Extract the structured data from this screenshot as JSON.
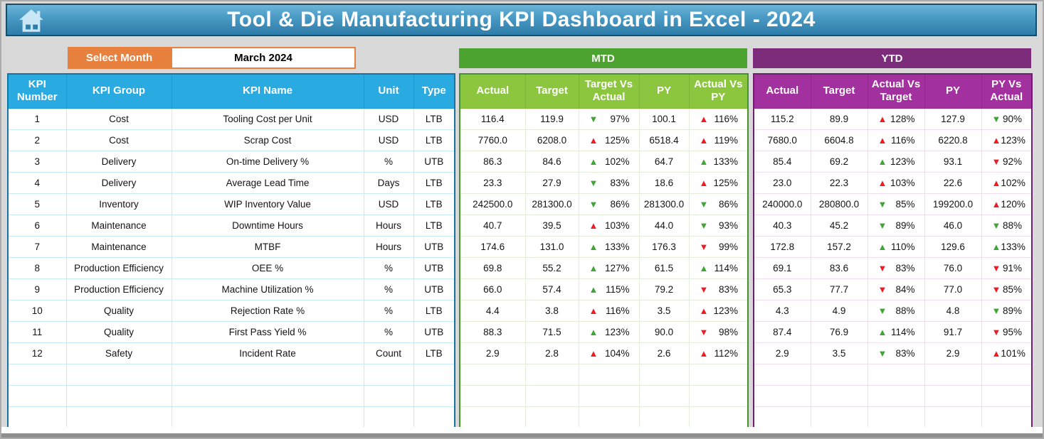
{
  "header": {
    "title": "Tool & Die Manufacturing KPI Dashboard in Excel - 2024"
  },
  "month_selector": {
    "button_label": "Select Month",
    "selected_value": "March 2024",
    "accent_color": "#E8813E"
  },
  "colors": {
    "kpi_header_blue": "#29ABE2",
    "mtd_band_green": "#4DA32F",
    "mtd_header_green": "#8CC63E",
    "ytd_band_purple": "#7D2B7B",
    "ytd_header_purple": "#A3309F",
    "trend_good_green": "#3FA535",
    "trend_bad_red": "#EC1C24",
    "title_bar_blue_top": "#6CB5D9",
    "title_bar_blue_bottom": "#2E7CA9"
  },
  "icons": {
    "up": "▲",
    "down": "▼"
  },
  "kpi_table": {
    "columns": [
      "KPI Number",
      "KPI Group",
      "KPI Name",
      "Unit",
      "Type"
    ],
    "empty_rows": 3,
    "rows": [
      {
        "number": "1",
        "group": "Cost",
        "name": "Tooling Cost per Unit",
        "unit": "USD",
        "type": "LTB"
      },
      {
        "number": "2",
        "group": "Cost",
        "name": "Scrap Cost",
        "unit": "USD",
        "type": "LTB"
      },
      {
        "number": "3",
        "group": "Delivery",
        "name": "On-time Delivery %",
        "unit": "%",
        "type": "UTB"
      },
      {
        "number": "4",
        "group": "Delivery",
        "name": "Average Lead Time",
        "unit": "Days",
        "type": "LTB"
      },
      {
        "number": "5",
        "group": "Inventory",
        "name": "WIP Inventory Value",
        "unit": "USD",
        "type": "LTB"
      },
      {
        "number": "6",
        "group": "Maintenance",
        "name": "Downtime Hours",
        "unit": "Hours",
        "type": "LTB"
      },
      {
        "number": "7",
        "group": "Maintenance",
        "name": "MTBF",
        "unit": "Hours",
        "type": "UTB"
      },
      {
        "number": "8",
        "group": "Production Efficiency",
        "name": "OEE %",
        "unit": "%",
        "type": "UTB"
      },
      {
        "number": "9",
        "group": "Production Efficiency",
        "name": "Machine Utilization %",
        "unit": "%",
        "type": "UTB"
      },
      {
        "number": "10",
        "group": "Quality",
        "name": "Rejection Rate %",
        "unit": "%",
        "type": "LTB"
      },
      {
        "number": "11",
        "group": "Quality",
        "name": "First Pass Yield %",
        "unit": "%",
        "type": "UTB"
      },
      {
        "number": "12",
        "group": "Safety",
        "name": "Incident Rate",
        "unit": "Count",
        "type": "LTB"
      }
    ]
  },
  "mtd": {
    "band_label": "MTD",
    "columns": [
      "Actual",
      "Target",
      "Target Vs Actual",
      "PY",
      "Actual Vs PY"
    ],
    "empty_rows": 3,
    "rows": [
      {
        "actual": "116.4",
        "target": "119.9",
        "cmp1": {
          "dir": "down",
          "color": "green",
          "value": "97%"
        },
        "py": "100.1",
        "cmp2": {
          "dir": "up",
          "color": "red",
          "value": "116%"
        }
      },
      {
        "actual": "7760.0",
        "target": "6208.0",
        "cmp1": {
          "dir": "up",
          "color": "red",
          "value": "125%"
        },
        "py": "6518.4",
        "cmp2": {
          "dir": "up",
          "color": "red",
          "value": "119%"
        }
      },
      {
        "actual": "86.3",
        "target": "84.6",
        "cmp1": {
          "dir": "up",
          "color": "green",
          "value": "102%"
        },
        "py": "64.7",
        "cmp2": {
          "dir": "up",
          "color": "green",
          "value": "133%"
        }
      },
      {
        "actual": "23.3",
        "target": "27.9",
        "cmp1": {
          "dir": "down",
          "color": "green",
          "value": "83%"
        },
        "py": "18.6",
        "cmp2": {
          "dir": "up",
          "color": "red",
          "value": "125%"
        }
      },
      {
        "actual": "242500.0",
        "target": "281300.0",
        "cmp1": {
          "dir": "down",
          "color": "green",
          "value": "86%"
        },
        "py": "281300.0",
        "cmp2": {
          "dir": "down",
          "color": "green",
          "value": "86%"
        }
      },
      {
        "actual": "40.7",
        "target": "39.5",
        "cmp1": {
          "dir": "up",
          "color": "red",
          "value": "103%"
        },
        "py": "44.0",
        "cmp2": {
          "dir": "down",
          "color": "green",
          "value": "93%"
        }
      },
      {
        "actual": "174.6",
        "target": "131.0",
        "cmp1": {
          "dir": "up",
          "color": "green",
          "value": "133%"
        },
        "py": "176.3",
        "cmp2": {
          "dir": "down",
          "color": "red",
          "value": "99%"
        }
      },
      {
        "actual": "69.8",
        "target": "55.2",
        "cmp1": {
          "dir": "up",
          "color": "green",
          "value": "127%"
        },
        "py": "61.5",
        "cmp2": {
          "dir": "up",
          "color": "green",
          "value": "114%"
        }
      },
      {
        "actual": "66.0",
        "target": "57.4",
        "cmp1": {
          "dir": "up",
          "color": "green",
          "value": "115%"
        },
        "py": "79.2",
        "cmp2": {
          "dir": "down",
          "color": "red",
          "value": "83%"
        }
      },
      {
        "actual": "4.4",
        "target": "3.8",
        "cmp1": {
          "dir": "up",
          "color": "red",
          "value": "116%"
        },
        "py": "3.5",
        "cmp2": {
          "dir": "up",
          "color": "red",
          "value": "123%"
        }
      },
      {
        "actual": "88.3",
        "target": "71.5",
        "cmp1": {
          "dir": "up",
          "color": "green",
          "value": "123%"
        },
        "py": "90.0",
        "cmp2": {
          "dir": "down",
          "color": "red",
          "value": "98%"
        }
      },
      {
        "actual": "2.9",
        "target": "2.8",
        "cmp1": {
          "dir": "up",
          "color": "red",
          "value": "104%"
        },
        "py": "2.6",
        "cmp2": {
          "dir": "up",
          "color": "red",
          "value": "112%"
        }
      }
    ]
  },
  "ytd": {
    "band_label": "YTD",
    "columns": [
      "Actual",
      "Target",
      "Actual Vs Target",
      "PY",
      "PY Vs Actual"
    ],
    "empty_rows": 3,
    "rows": [
      {
        "actual": "115.2",
        "target": "89.9",
        "cmp1": {
          "dir": "up",
          "color": "red",
          "value": "128%"
        },
        "py": "127.9",
        "cmp2": {
          "dir": "down",
          "color": "green",
          "value": "90%"
        }
      },
      {
        "actual": "7680.0",
        "target": "6604.8",
        "cmp1": {
          "dir": "up",
          "color": "red",
          "value": "116%"
        },
        "py": "6220.8",
        "cmp2": {
          "dir": "up",
          "color": "red",
          "value": "123%"
        }
      },
      {
        "actual": "85.4",
        "target": "69.2",
        "cmp1": {
          "dir": "up",
          "color": "green",
          "value": "123%"
        },
        "py": "93.1",
        "cmp2": {
          "dir": "down",
          "color": "red",
          "value": "92%"
        }
      },
      {
        "actual": "23.0",
        "target": "22.3",
        "cmp1": {
          "dir": "up",
          "color": "red",
          "value": "103%"
        },
        "py": "22.6",
        "cmp2": {
          "dir": "up",
          "color": "red",
          "value": "102%"
        }
      },
      {
        "actual": "240000.0",
        "target": "280800.0",
        "cmp1": {
          "dir": "down",
          "color": "green",
          "value": "85%"
        },
        "py": "199200.0",
        "cmp2": {
          "dir": "up",
          "color": "red",
          "value": "120%"
        }
      },
      {
        "actual": "40.3",
        "target": "45.2",
        "cmp1": {
          "dir": "down",
          "color": "green",
          "value": "89%"
        },
        "py": "46.0",
        "cmp2": {
          "dir": "down",
          "color": "green",
          "value": "88%"
        }
      },
      {
        "actual": "172.8",
        "target": "157.2",
        "cmp1": {
          "dir": "up",
          "color": "green",
          "value": "110%"
        },
        "py": "129.6",
        "cmp2": {
          "dir": "up",
          "color": "green",
          "value": "133%"
        }
      },
      {
        "actual": "69.1",
        "target": "83.6",
        "cmp1": {
          "dir": "down",
          "color": "red",
          "value": "83%"
        },
        "py": "76.0",
        "cmp2": {
          "dir": "down",
          "color": "red",
          "value": "91%"
        }
      },
      {
        "actual": "65.3",
        "target": "77.7",
        "cmp1": {
          "dir": "down",
          "color": "red",
          "value": "84%"
        },
        "py": "77.0",
        "cmp2": {
          "dir": "down",
          "color": "red",
          "value": "85%"
        }
      },
      {
        "actual": "4.3",
        "target": "4.9",
        "cmp1": {
          "dir": "down",
          "color": "green",
          "value": "88%"
        },
        "py": "4.8",
        "cmp2": {
          "dir": "down",
          "color": "green",
          "value": "89%"
        }
      },
      {
        "actual": "87.4",
        "target": "76.9",
        "cmp1": {
          "dir": "up",
          "color": "green",
          "value": "114%"
        },
        "py": "91.7",
        "cmp2": {
          "dir": "down",
          "color": "red",
          "value": "95%"
        }
      },
      {
        "actual": "2.9",
        "target": "3.5",
        "cmp1": {
          "dir": "down",
          "color": "green",
          "value": "83%"
        },
        "py": "2.9",
        "cmp2": {
          "dir": "up",
          "color": "red",
          "value": "101%"
        }
      }
    ]
  }
}
